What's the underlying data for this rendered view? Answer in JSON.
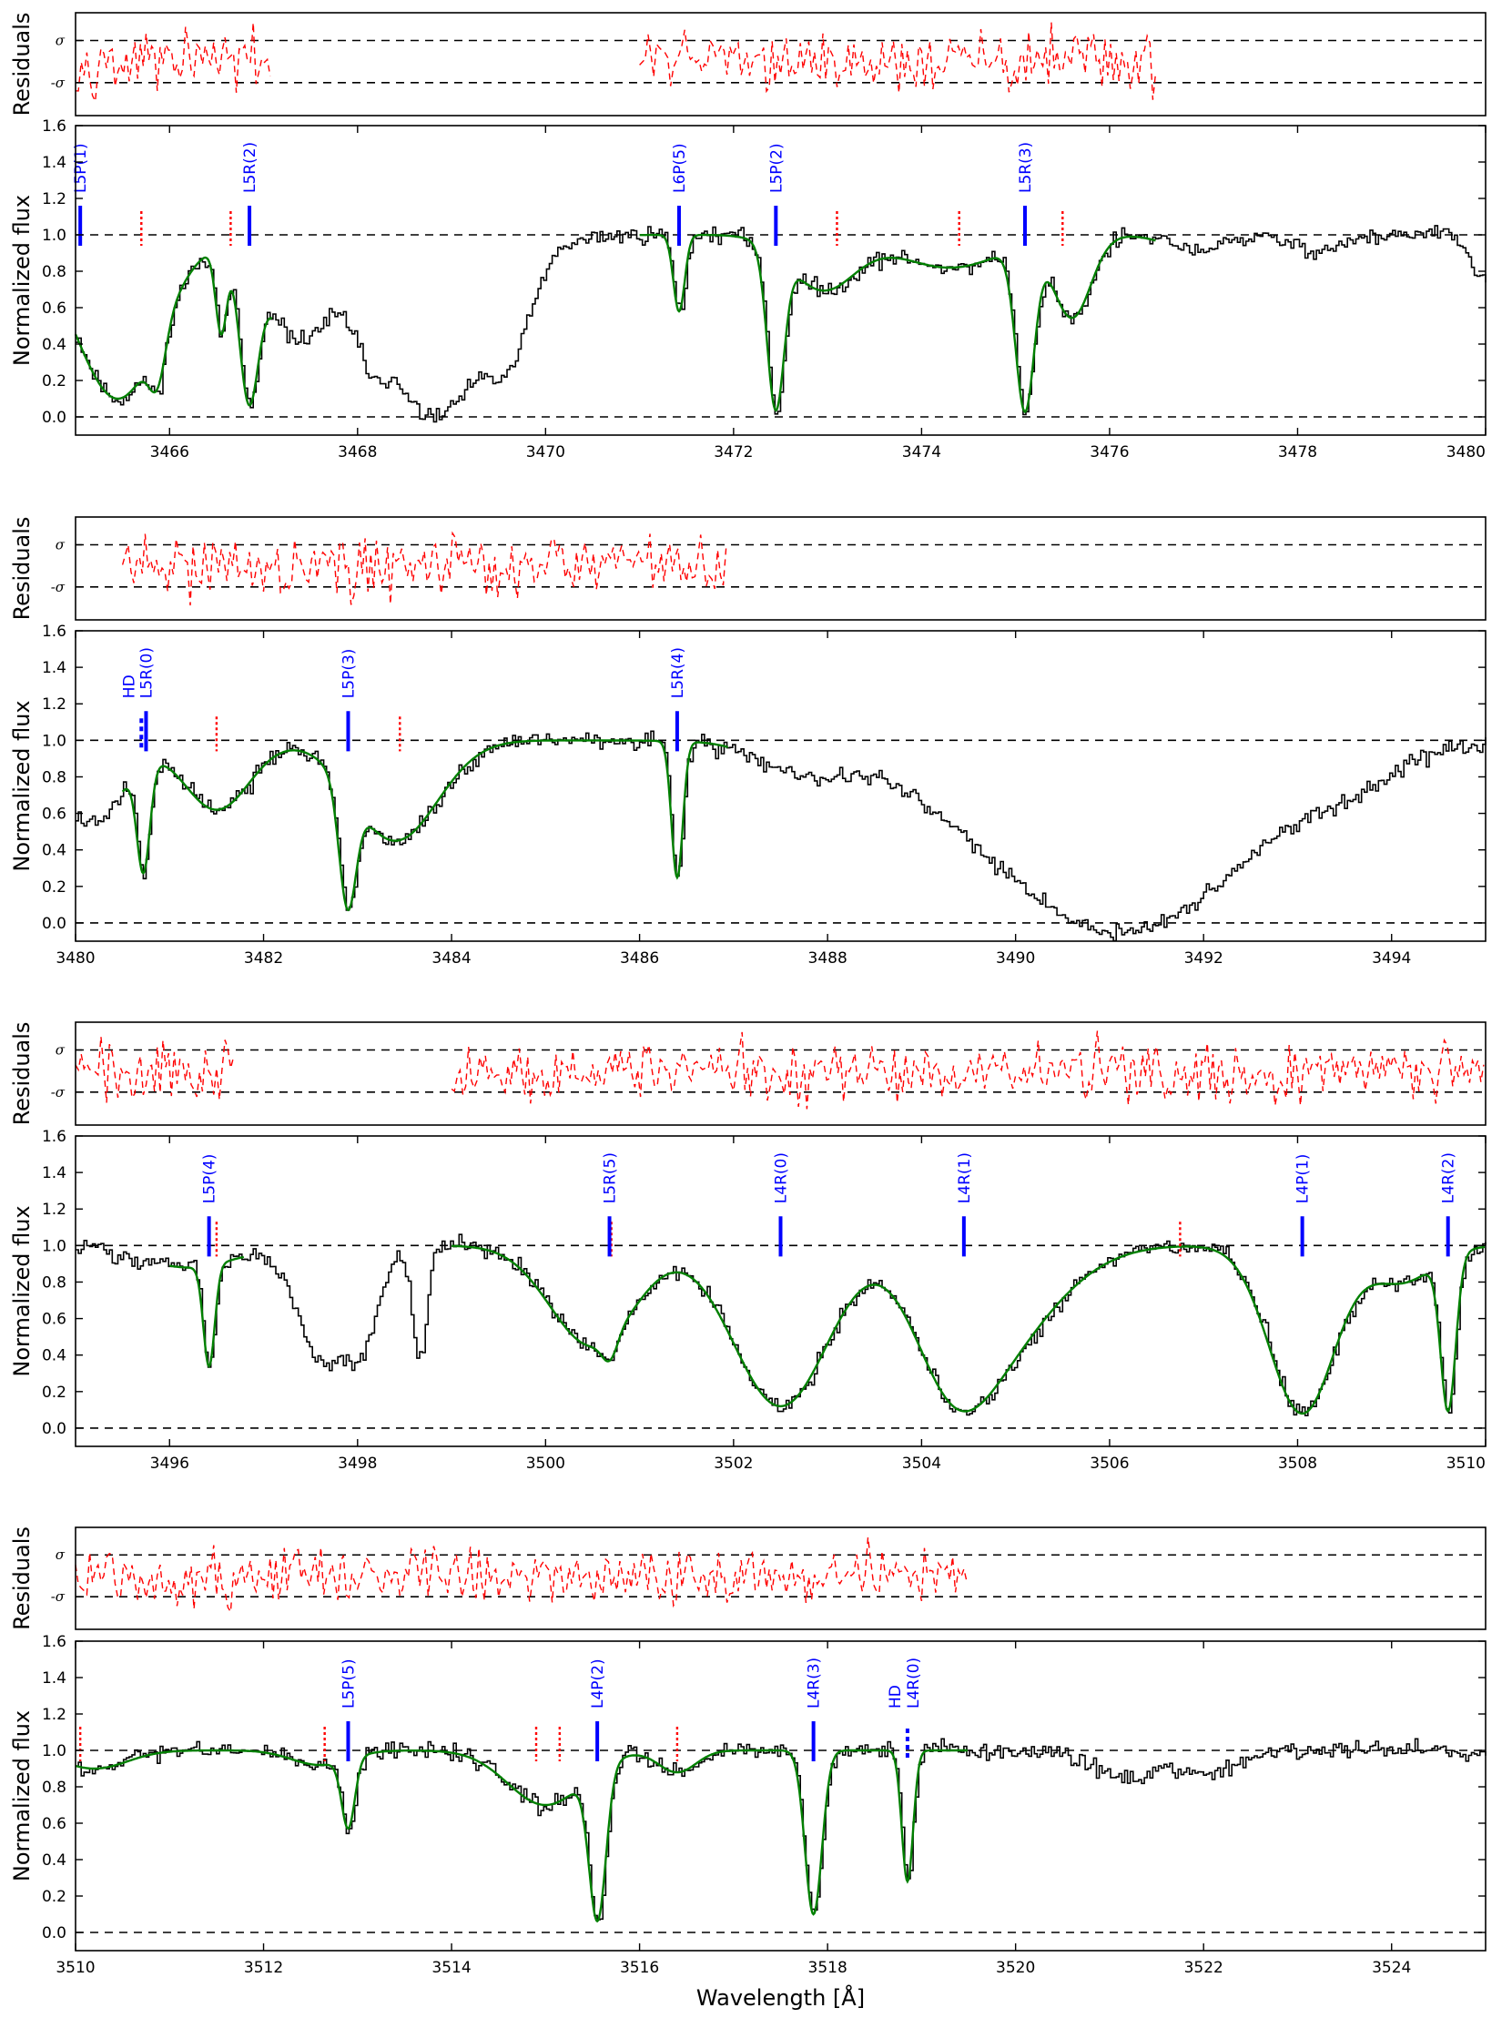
{
  "chart_data": [
    {
      "type": "line",
      "panel": 1,
      "xlim": [
        3465,
        3480
      ],
      "xticks": [
        "3466",
        "3468",
        "3470",
        "3472",
        "3474",
        "3476",
        "3478",
        "3480"
      ],
      "xtick_values": [
        3466,
        3468,
        3470,
        3472,
        3474,
        3476,
        3478,
        3480
      ],
      "ylim": [
        -0.1,
        1.6
      ],
      "yticks": [
        "0.0",
        "0.2",
        "0.4",
        "0.6",
        "0.8",
        "1.0",
        "1.2",
        "1.4",
        "1.6"
      ],
      "ylabel": "Normalized flux",
      "residuals_ylabel": "Residuals",
      "residuals_ticks": [
        "σ",
        "-σ"
      ],
      "residual_ranges": [
        [
          3465.0,
          3467.1
        ],
        [
          3471.0,
          3476.5
        ]
      ],
      "fit_ranges": [
        [
          3465.0,
          3467.1
        ],
        [
          3471.0,
          3476.5
        ]
      ],
      "h2_lines": [
        {
          "label": "L5P(1)",
          "x": 3465.05
        },
        {
          "label": "L5R(2)",
          "x": 3466.85
        },
        {
          "label": "L6P(5)",
          "x": 3471.42
        },
        {
          "label": "L5P(2)",
          "x": 3472.45
        },
        {
          "label": "L5R(3)",
          "x": 3475.1
        }
      ],
      "other_lines": [
        3465.7,
        3466.65,
        3473.1,
        3474.4,
        3475.5
      ],
      "absorption": [
        {
          "c": 3465.45,
          "d": 0.9,
          "w": 0.45
        },
        {
          "c": 3465.85,
          "d": 0.65,
          "w": 0.09
        },
        {
          "c": 3466.55,
          "d": 0.5,
          "w": 0.06
        },
        {
          "c": 3466.85,
          "d": 0.92,
          "w": 0.1
        },
        {
          "c": 3467.35,
          "d": 0.55,
          "w": 0.35
        },
        {
          "c": 3468.8,
          "d": 1.0,
          "w": 0.6
        },
        {
          "c": 3469.55,
          "d": 0.6,
          "w": 0.22
        },
        {
          "c": 3468.15,
          "d": 0.45,
          "w": 0.15
        },
        {
          "c": 3471.42,
          "d": 0.42,
          "w": 0.06
        },
        {
          "c": 3472.45,
          "d": 0.96,
          "w": 0.09
        },
        {
          "c": 3472.95,
          "d": 0.3,
          "w": 0.35
        },
        {
          "c": 3474.3,
          "d": 0.18,
          "w": 0.55
        },
        {
          "c": 3475.1,
          "d": 0.97,
          "w": 0.1
        },
        {
          "c": 3475.6,
          "d": 0.45,
          "w": 0.2
        },
        {
          "c": 3476.9,
          "d": 0.08,
          "w": 0.3
        },
        {
          "c": 3478.2,
          "d": 0.08,
          "w": 0.3
        },
        {
          "c": 3479.95,
          "d": 0.25,
          "w": 0.12
        }
      ]
    },
    {
      "type": "line",
      "panel": 2,
      "xlim": [
        3480,
        3495
      ],
      "xticks": [
        "3480",
        "3482",
        "3484",
        "3486",
        "3488",
        "3490",
        "3492",
        "3494"
      ],
      "xtick_values": [
        3480,
        3482,
        3484,
        3486,
        3488,
        3490,
        3492,
        3494
      ],
      "ylim": [
        -0.1,
        1.6
      ],
      "yticks": [
        "0.0",
        "0.2",
        "0.4",
        "0.6",
        "0.8",
        "1.0",
        "1.2",
        "1.4",
        "1.6"
      ],
      "ylabel": "Normalized flux",
      "residuals_ylabel": "Residuals",
      "residuals_ticks": [
        "σ",
        "-σ"
      ],
      "residual_ranges": [
        [
          3480.5,
          3486.95
        ]
      ],
      "fit_ranges": [
        [
          3480.5,
          3486.95
        ]
      ],
      "h2_lines": [
        {
          "label": "L5R(0)",
          "x": 3480.75
        },
        {
          "label": "L5P(3)",
          "x": 3482.9
        },
        {
          "label": "L5R(4)",
          "x": 3486.4
        }
      ],
      "hd_lines": [
        {
          "label": "HD",
          "x": 3480.7
        }
      ],
      "other_lines": [
        3481.5,
        3483.45
      ],
      "absorption": [
        {
          "c": 3480.15,
          "d": 0.45,
          "w": 0.35
        },
        {
          "c": 3480.72,
          "d": 0.68,
          "w": 0.07
        },
        {
          "c": 3481.5,
          "d": 0.38,
          "w": 0.35
        },
        {
          "c": 3482.9,
          "d": 0.9,
          "w": 0.09
        },
        {
          "c": 3483.4,
          "d": 0.55,
          "w": 0.45
        },
        {
          "c": 3486.4,
          "d": 0.75,
          "w": 0.06
        },
        {
          "c": 3487.7,
          "d": 0.15,
          "w": 0.4
        },
        {
          "c": 3491.1,
          "d": 1.05,
          "w": 1.4
        },
        {
          "c": 3493.5,
          "d": 0.15,
          "w": 0.35
        }
      ]
    },
    {
      "type": "line",
      "panel": 3,
      "xlim": [
        3495,
        3510
      ],
      "xticks": [
        "3496",
        "3498",
        "3500",
        "3502",
        "3504",
        "3506",
        "3508",
        "3510"
      ],
      "xtick_values": [
        3496,
        3498,
        3500,
        3502,
        3504,
        3506,
        3508,
        3510
      ],
      "ylim": [
        -0.1,
        1.6
      ],
      "yticks": [
        "0.0",
        "0.2",
        "0.4",
        "0.6",
        "0.8",
        "1.0",
        "1.2",
        "1.4",
        "1.6"
      ],
      "ylabel": "Normalized flux",
      "residuals_ylabel": "Residuals",
      "residuals_ticks": [
        "σ",
        "-σ"
      ],
      "residual_ranges": [
        [
          3495.0,
          3496.7
        ],
        [
          3499.0,
          3510.0
        ]
      ],
      "fit_ranges": [
        [
          3496.0,
          3496.8
        ],
        [
          3499.0,
          3510.0
        ]
      ],
      "h2_lines": [
        {
          "label": "L5P(4)",
          "x": 3496.42
        },
        {
          "label": "L5R(5)",
          "x": 3500.68
        },
        {
          "label": "L4R(0)",
          "x": 3502.5
        },
        {
          "label": "L4R(1)",
          "x": 3504.45
        },
        {
          "label": "L4P(1)",
          "x": 3508.05
        },
        {
          "label": "L4R(2)",
          "x": 3509.6
        }
      ],
      "other_lines": [
        3496.5,
        3500.7,
        3506.75
      ],
      "absorption": [
        {
          "c": 3496.42,
          "d": 0.62,
          "w": 0.06
        },
        {
          "c": 3496.2,
          "d": 0.12,
          "w": 0.5
        },
        {
          "c": 3497.6,
          "d": 0.6,
          "w": 0.25
        },
        {
          "c": 3498.0,
          "d": 0.55,
          "w": 0.2
        },
        {
          "c": 3498.65,
          "d": 0.6,
          "w": 0.08
        },
        {
          "c": 3500.5,
          "d": 0.55,
          "w": 0.45
        },
        {
          "c": 3500.68,
          "d": 0.25,
          "w": 0.08
        },
        {
          "c": 3502.5,
          "d": 0.88,
          "w": 0.5
        },
        {
          "c": 3504.45,
          "d": 0.88,
          "w": 0.45
        },
        {
          "c": 3505.0,
          "d": 0.35,
          "w": 0.6
        },
        {
          "c": 3508.05,
          "d": 0.92,
          "w": 0.35
        },
        {
          "c": 3509.6,
          "d": 0.9,
          "w": 0.08
        },
        {
          "c": 3509.1,
          "d": 0.2,
          "w": 0.35
        }
      ]
    },
    {
      "type": "line",
      "panel": 4,
      "xlim": [
        3510,
        3525
      ],
      "xticks": [
        "3510",
        "3512",
        "3514",
        "3516",
        "3518",
        "3520",
        "3522",
        "3524"
      ],
      "xtick_values": [
        3510,
        3512,
        3514,
        3516,
        3518,
        3520,
        3522,
        3524
      ],
      "ylim": [
        -0.1,
        1.6
      ],
      "yticks": [
        "0.0",
        "0.2",
        "0.4",
        "0.6",
        "0.8",
        "1.0",
        "1.2",
        "1.4",
        "1.6"
      ],
      "ylabel": "Normalized flux",
      "xlabel": "Wavelength [Å]",
      "residuals_ylabel": "Residuals",
      "residuals_ticks": [
        "σ",
        "-σ"
      ],
      "residual_ranges": [
        [
          3510.0,
          3519.5
        ]
      ],
      "fit_ranges": [
        [
          3510.0,
          3519.5
        ]
      ],
      "h2_lines": [
        {
          "label": "L5P(5)",
          "x": 3512.9
        },
        {
          "label": "L4P(2)",
          "x": 3515.55
        },
        {
          "label": "L4R(3)",
          "x": 3517.85
        }
      ],
      "hd_lines": [
        {
          "label": "HD",
          "x": 3518.85
        },
        {
          "label": "L4R(0)",
          "x": 3518.85
        }
      ],
      "other_lines": [
        3510.05,
        3512.65,
        3514.9,
        3515.15,
        3516.4
      ],
      "absorption": [
        {
          "c": 3510.2,
          "d": 0.1,
          "w": 0.35
        },
        {
          "c": 3512.6,
          "d": 0.08,
          "w": 0.3
        },
        {
          "c": 3512.9,
          "d": 0.4,
          "w": 0.07
        },
        {
          "c": 3515.0,
          "d": 0.3,
          "w": 0.4
        },
        {
          "c": 3515.55,
          "d": 0.93,
          "w": 0.09
        },
        {
          "c": 3516.4,
          "d": 0.12,
          "w": 0.2
        },
        {
          "c": 3517.85,
          "d": 0.9,
          "w": 0.09
        },
        {
          "c": 3518.85,
          "d": 0.72,
          "w": 0.06
        },
        {
          "c": 3521.2,
          "d": 0.15,
          "w": 0.35
        },
        {
          "c": 3522.1,
          "d": 0.12,
          "w": 0.3
        }
      ]
    }
  ],
  "colors": {
    "flux": "#000000",
    "model": "#008000",
    "residuals": "#ff0000",
    "h2_marker": "#0000ff",
    "other_marker": "#ff0000"
  }
}
